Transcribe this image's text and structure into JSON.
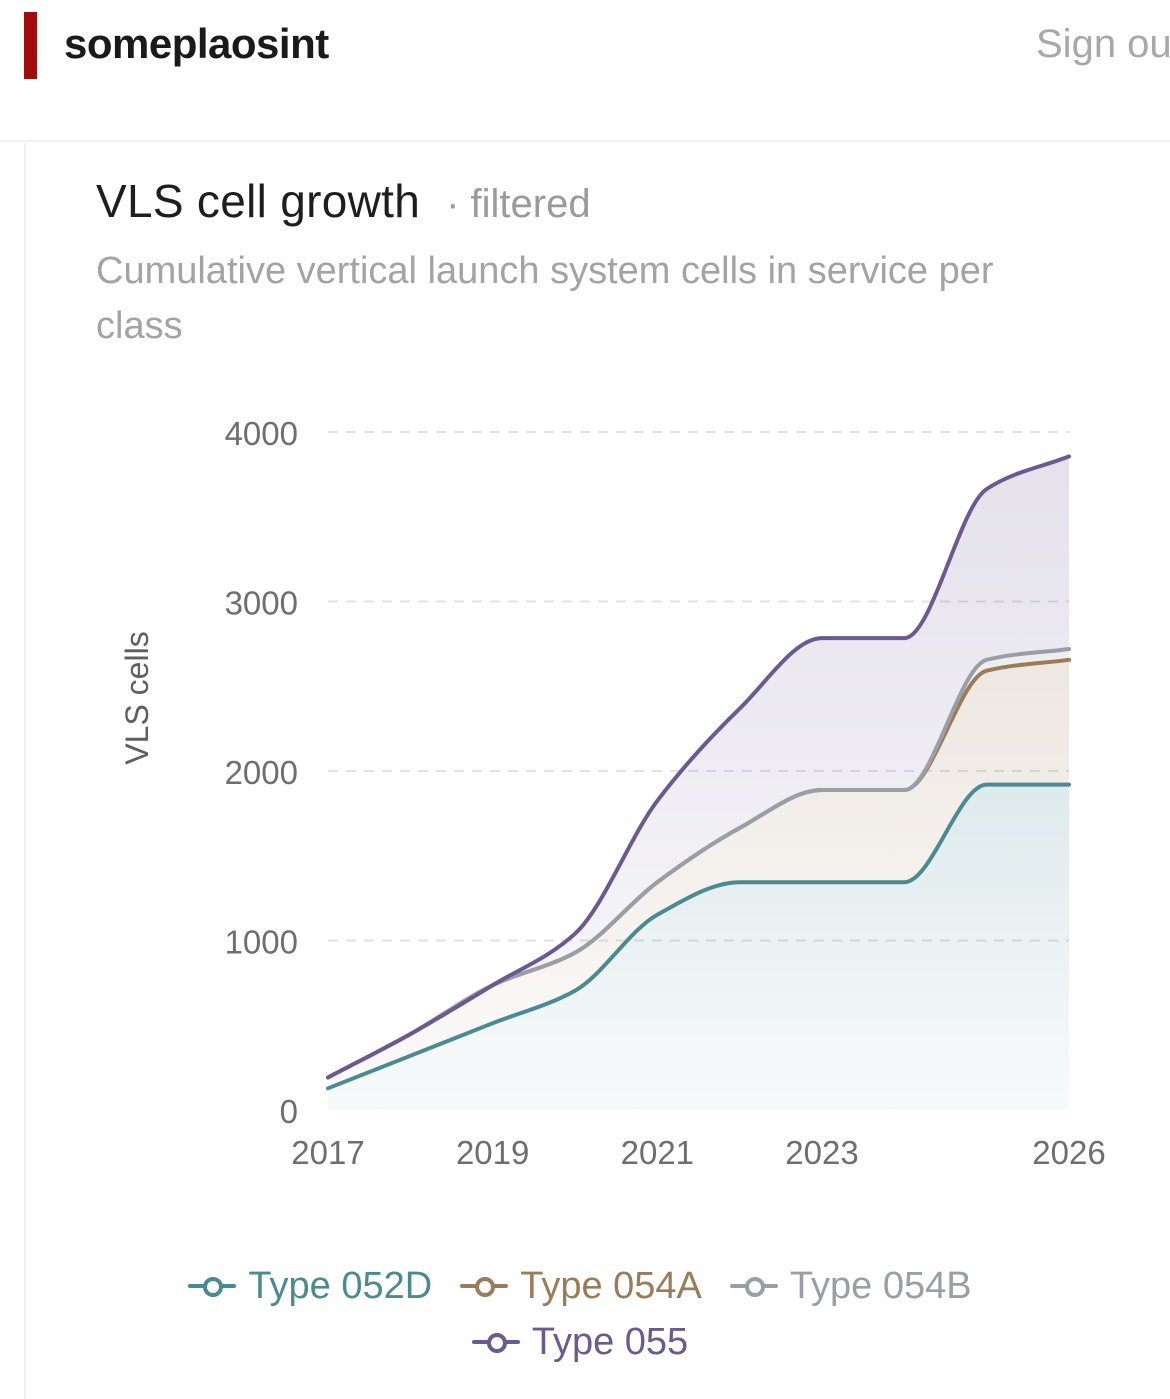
{
  "header": {
    "brand": "someplaosint",
    "signout_label": "Sign ou",
    "brand_color": "#a10d0d"
  },
  "card": {
    "title": "VLS cell growth",
    "filter_badge": "· filtered",
    "subtitle": "Cumulative vertical launch system cells in service per class"
  },
  "chart_data": {
    "type": "area",
    "title": "VLS cell growth",
    "subtitle": "Cumulative vertical launch system cells in service per class",
    "ylabel": "VLS cells",
    "xlabel": "",
    "ylim": [
      0,
      4000
    ],
    "xlim": [
      2017,
      2026
    ],
    "yticks": [
      0,
      1000,
      2000,
      3000,
      4000
    ],
    "xticks": [
      2017,
      2019,
      2021,
      2023,
      2026
    ],
    "grid": true,
    "stacked": true,
    "legend_position": "bottom",
    "x": [
      2017,
      2018,
      2019,
      2020,
      2021,
      2022,
      2023,
      2024,
      2025,
      2026
    ],
    "series": [
      {
        "name": "Type 052D",
        "color": "#4a8a93",
        "values": [
          128,
          320,
          512,
          704,
          1152,
          1344,
          1344,
          1344,
          1920,
          1920
        ]
      },
      {
        "name": "Type 054A",
        "color": "#9c7b58",
        "values": [
          64,
          128,
          224,
          224,
          192,
          320,
          544,
          544,
          672,
          736
        ]
      },
      {
        "name": "Type 054B",
        "color": "#9a9ea6",
        "values": [
          0,
          0,
          0,
          0,
          0,
          0,
          0,
          0,
          64,
          64
        ]
      },
      {
        "name": "Type 055",
        "color": "#6a5a8f",
        "values": [
          0,
          0,
          0,
          112,
          480,
          704,
          896,
          896,
          1008,
          1136
        ]
      }
    ]
  }
}
